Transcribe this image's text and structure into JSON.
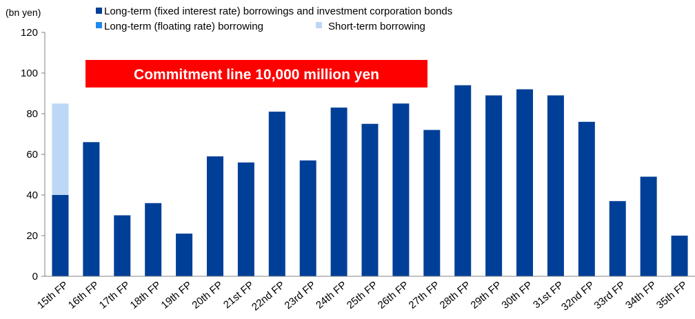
{
  "chart_data": {
    "type": "bar",
    "stacked": true,
    "unit_label": "(bn yen)",
    "title": "",
    "xlabel": "",
    "ylabel": "",
    "ylim": [
      0,
      120
    ],
    "yticks": [
      0,
      20,
      40,
      60,
      80,
      100,
      120
    ],
    "grid": false,
    "legend_position": "top",
    "categories": [
      "15th FP",
      "16th FP",
      "17th FP",
      "18th FP",
      "19th FP",
      "20th FP",
      "21st FP",
      "22nd FP",
      "23rd FP",
      "24th FP",
      "25th FP",
      "26th FP",
      "27th FP",
      "28th FP",
      "29th FP",
      "30th FP",
      "31st FP",
      "32nd FP",
      "33rd FP",
      "34th FP",
      "35th FP"
    ],
    "series": [
      {
        "name": "Long-term (fixed interest rate) borrowings and investment corporation bonds",
        "color": "#003F98",
        "values": [
          40,
          66,
          30,
          36,
          21,
          59,
          56,
          81,
          57,
          83,
          75,
          85,
          72,
          94,
          89,
          92,
          89,
          76,
          37,
          49,
          20
        ]
      },
      {
        "name": "Long-term (floating rate) borrowing",
        "color": "#1F88F0",
        "values": [
          0,
          0,
          0,
          0,
          0,
          0,
          0,
          0,
          0,
          0,
          0,
          0,
          0,
          0,
          0,
          0,
          0,
          0,
          0,
          0,
          0
        ]
      },
      {
        "name": "Short-term borrowing",
        "color": "#BDD7F7",
        "values": [
          45,
          0,
          0,
          0,
          0,
          0,
          0,
          0,
          0,
          0,
          0,
          0,
          0,
          0,
          0,
          0,
          0,
          0,
          0,
          0,
          0
        ]
      }
    ],
    "annotation": {
      "text": "Commitment line 10,000 million yen",
      "background": "#FF0000",
      "color": "#FFFFFF"
    }
  }
}
